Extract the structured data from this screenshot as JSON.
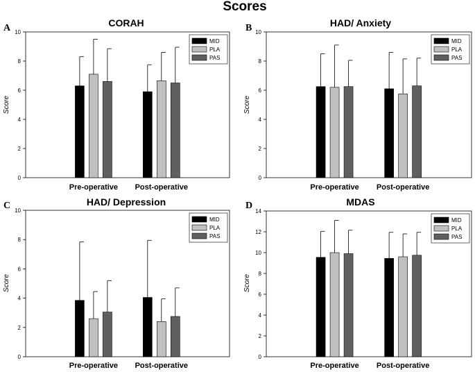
{
  "title": "Scores",
  "colors": {
    "MID": "#000000",
    "PLA": "#c0c0c0",
    "PAS": "#606060"
  },
  "chart_data": [
    {
      "type": "bar",
      "letter": "A",
      "title": "CORAH",
      "ylabel": "Score",
      "ylim": [
        0,
        10
      ],
      "yticks": [
        "0",
        "2",
        "4",
        "6",
        "8",
        "10"
      ],
      "categories": [
        "Pre-operative",
        "Post-operative"
      ],
      "legend": "top-right",
      "series": [
        {
          "name": "MID",
          "values": [
            6.3,
            5.9
          ],
          "errors": [
            2.0,
            1.85
          ]
        },
        {
          "name": "PLA",
          "values": [
            7.1,
            6.65
          ],
          "errors": [
            2.4,
            1.95
          ]
        },
        {
          "name": "PAS",
          "values": [
            6.6,
            6.5
          ],
          "errors": [
            2.25,
            2.45
          ]
        }
      ]
    },
    {
      "type": "bar",
      "letter": "B",
      "title": "HAD/ Anxiety",
      "ylabel": "Score",
      "ylim": [
        0,
        10
      ],
      "yticks": [
        "0",
        "2",
        "4",
        "6",
        "8",
        "10"
      ],
      "categories": [
        "Pre-operative",
        "Post-operative"
      ],
      "legend": "top-right",
      "series": [
        {
          "name": "MID",
          "values": [
            6.25,
            6.1
          ],
          "errors": [
            2.25,
            2.5
          ]
        },
        {
          "name": "PLA",
          "values": [
            6.2,
            5.75
          ],
          "errors": [
            2.9,
            2.4
          ]
        },
        {
          "name": "PAS",
          "values": [
            6.25,
            6.3
          ],
          "errors": [
            1.8,
            1.9
          ]
        }
      ]
    },
    {
      "type": "bar",
      "letter": "C",
      "title": "HAD/ Depression",
      "ylabel": "Score",
      "ylim": [
        0,
        10
      ],
      "yticks": [
        "0",
        "2",
        "4",
        "6",
        "8",
        "10"
      ],
      "categories": [
        "Pre-operative",
        "Post-operative"
      ],
      "legend": "top-right",
      "series": [
        {
          "name": "MID",
          "values": [
            3.85,
            4.05
          ],
          "errors": [
            4.0,
            3.9
          ]
        },
        {
          "name": "PLA",
          "values": [
            2.6,
            2.4
          ],
          "errors": [
            1.85,
            1.55
          ]
        },
        {
          "name": "PAS",
          "values": [
            3.05,
            2.75
          ],
          "errors": [
            2.15,
            1.95
          ]
        }
      ]
    },
    {
      "type": "bar",
      "letter": "D",
      "title": "MDAS",
      "ylabel": "Score",
      "ylim": [
        0,
        14
      ],
      "yticks": [
        "0",
        "2",
        "4",
        "6",
        "8",
        "10",
        "12",
        "14"
      ],
      "categories": [
        "Pre-operative",
        "Post-operative"
      ],
      "legend": "top-right",
      "series": [
        {
          "name": "MID",
          "values": [
            9.55,
            9.45
          ],
          "errors": [
            2.5,
            2.5
          ]
        },
        {
          "name": "PLA",
          "values": [
            10.0,
            9.6
          ],
          "errors": [
            3.1,
            2.2
          ]
        },
        {
          "name": "PAS",
          "values": [
            9.9,
            9.75
          ],
          "errors": [
            2.25,
            2.2
          ]
        }
      ]
    }
  ]
}
